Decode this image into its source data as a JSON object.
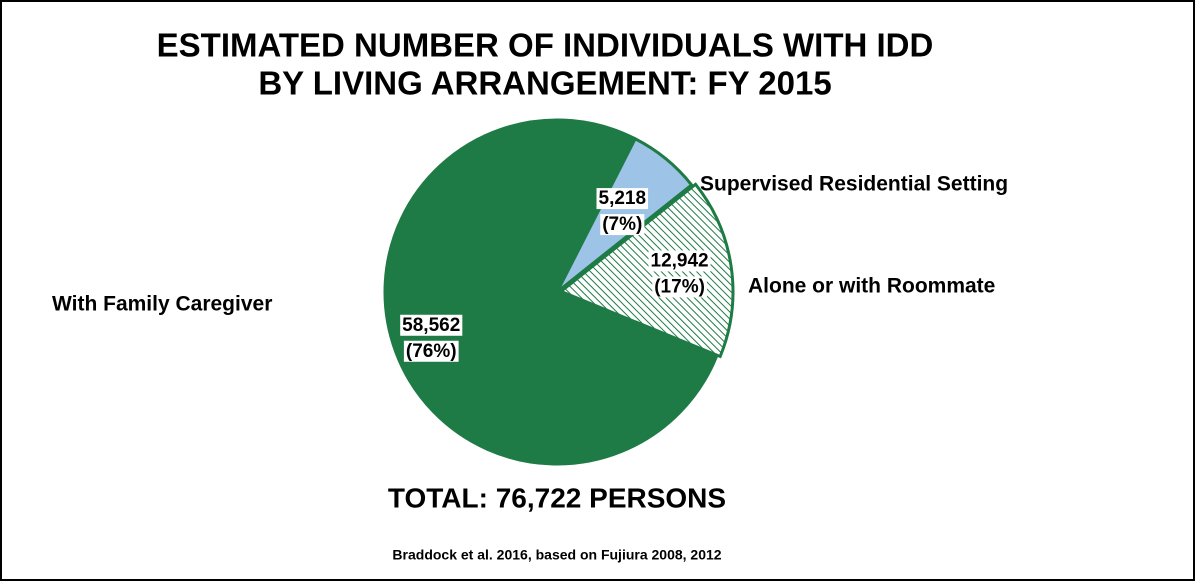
{
  "chart_data": {
    "type": "pie",
    "title": [
      "ESTIMATED NUMBER OF INDIVIDUALS WITH IDD",
      "BY LIVING ARRANGEMENT: FY 2015"
    ],
    "categories": [
      "Supervised Residential Setting",
      "Alone or with Roommate",
      "With Family Caregiver"
    ],
    "values": [
      5218,
      12942,
      58562
    ],
    "value_labels": [
      "5,218",
      "12,942",
      "58,562"
    ],
    "percent_labels": [
      "(7%)",
      "(17%)",
      "(76%)"
    ],
    "colors": [
      "#9dc3e6",
      "#1e7b45",
      "#1e7b45"
    ],
    "hatched": [
      false,
      true,
      false
    ],
    "total": "TOTAL: 76,722 PERSONS",
    "source": "Braddock et al. 2016, based on Fujiura 2008, 2012"
  }
}
